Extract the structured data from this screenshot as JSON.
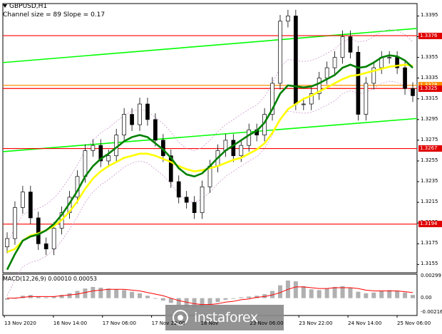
{
  "header": {
    "symbol": "GBPUSD,H1",
    "subtitle": "Channel size = 89 Slope = 0.17"
  },
  "macd": {
    "label": "MACD(12,26,9) 0.00010 0.00053",
    "ticks": [
      "0.00299",
      "0.00",
      "-0.00216"
    ]
  },
  "watermark": {
    "text": "instaforex"
  },
  "colors": {
    "candles": "#000000",
    "ma_fast": "#ffff00",
    "ma_slow": "#008000",
    "channel": "#00ff00",
    "levels": "#ff0000",
    "bands": "#cc99cc",
    "macd_hist": "#b0b0b0",
    "macd_signal": "#ff0000"
  },
  "chart_data": {
    "type": "line",
    "title": "GBPUSD,H1",
    "subtitle": "Channel size = 89 Slope = 0.17",
    "y_ticks": [
      "1.3395",
      "1.3375",
      "1.3355",
      "1.3335",
      "1.3315",
      "1.3295",
      "1.3275",
      "1.3255",
      "1.3235",
      "1.3215",
      "1.3195",
      "1.3175",
      "1.3155"
    ],
    "ylim": [
      1.3147,
      1.3407
    ],
    "x_ticks": [
      "13 Nov 2020",
      "16 Nov 14:00",
      "17 Nov 06:00",
      "17 Nov 22:00",
      "18 Nov",
      "23 Nov 06:00",
      "23 Nov 22:00",
      "24 Nov 14:00",
      "25 Nov 06:00"
    ],
    "levels": [
      {
        "label": "1.3376",
        "value": 1.3376,
        "color": "#ff0000"
      },
      {
        "label": "1.3328",
        "value": 1.3328,
        "color": "#ff8c00"
      },
      {
        "label": "1.3325",
        "value": 1.3325,
        "color": "#ff0000"
      },
      {
        "label": "1.3267",
        "value": 1.3267,
        "color": "#ff0000"
      },
      {
        "label": "1.3194",
        "value": 1.3194,
        "color": "#ff0000"
      }
    ],
    "channel_lines": [
      {
        "start": 1.335,
        "end": 1.3383
      },
      {
        "start": 1.3264,
        "end": 1.3296
      }
    ],
    "series": [
      {
        "name": "close",
        "values": [
          1.318,
          1.321,
          1.3225,
          1.32,
          1.3175,
          1.317,
          1.319,
          1.3205,
          1.322,
          1.324,
          1.3265,
          1.327,
          1.3255,
          1.326,
          1.328,
          1.33,
          1.329,
          1.331,
          1.3295,
          1.3275,
          1.326,
          1.3235,
          1.322,
          1.3215,
          1.3205,
          1.323,
          1.325,
          1.3265,
          1.3275,
          1.326,
          1.327,
          1.3285,
          1.328,
          1.33,
          1.333,
          1.339,
          1.3395,
          1.331,
          1.331,
          1.332,
          1.3335,
          1.3345,
          1.3355,
          1.3375,
          1.336,
          1.33,
          1.333,
          1.3345,
          1.3355,
          1.3355,
          1.3345,
          1.3325,
          1.3318
        ]
      },
      {
        "name": "ma_fast",
        "values": [
          1.3167,
          1.317,
          1.3178,
          1.3183,
          1.3185,
          1.3188,
          1.3192,
          1.3198,
          1.3206,
          1.3216,
          1.3228,
          1.3238,
          1.3245,
          1.325,
          1.3254,
          1.3258,
          1.326,
          1.3262,
          1.3262,
          1.326,
          1.3257,
          1.3254,
          1.325,
          1.3247,
          1.3245,
          1.3246,
          1.3248,
          1.325,
          1.3253,
          1.3256,
          1.3258,
          1.3262,
          1.3266,
          1.3272,
          1.3282,
          1.3295,
          1.3305,
          1.331,
          1.3315,
          1.3318,
          1.3322,
          1.3326,
          1.333,
          1.3334,
          1.3337,
          1.3338,
          1.334,
          1.3342,
          1.3344,
          1.3346,
          1.3347,
          1.3348,
          1.3347
        ]
      },
      {
        "name": "ma_slow",
        "values": [
          1.315,
          1.3165,
          1.3178,
          1.3182,
          1.3184,
          1.3188,
          1.3194,
          1.3203,
          1.3214,
          1.3226,
          1.324,
          1.325,
          1.3257,
          1.3262,
          1.3268,
          1.3274,
          1.3278,
          1.328,
          1.3278,
          1.3272,
          1.3266,
          1.3258,
          1.3248,
          1.3242,
          1.324,
          1.3243,
          1.325,
          1.3258,
          1.3265,
          1.327,
          1.3275,
          1.328,
          1.3284,
          1.3292,
          1.3305,
          1.332,
          1.3328,
          1.3327,
          1.3326,
          1.3327,
          1.333,
          1.3334,
          1.3338,
          1.3345,
          1.3348,
          1.3345,
          1.3346,
          1.335,
          1.3355,
          1.3357,
          1.3356,
          1.3352,
          1.3345
        ]
      }
    ],
    "macd_hist": [
      -0.0002,
      0.0,
      0.0003,
      0.0004,
      0.0002,
      0.0001,
      0.0002,
      0.0004,
      0.0006,
      0.0009,
      0.0012,
      0.0014,
      0.0013,
      0.0012,
      0.0011,
      0.001,
      0.0008,
      0.0006,
      0.0003,
      0.0,
      -0.0003,
      -0.0006,
      -0.0009,
      -0.0011,
      -0.0012,
      -0.0011,
      -0.0008,
      -0.0005,
      -0.0002,
      0.0,
      0.0001,
      0.0002,
      0.0003,
      0.0005,
      0.0009,
      0.0016,
      0.0022,
      0.0021,
      0.0015,
      0.0011,
      0.001,
      0.0012,
      0.0014,
      0.0015,
      0.0013,
      0.0008,
      0.0006,
      0.0007,
      0.0009,
      0.001,
      0.0009,
      0.0007,
      0.0004
    ],
    "macd_signal": [
      0.0,
      0.0,
      0.0001,
      0.0002,
      0.0002,
      0.0002,
      0.0002,
      0.0003,
      0.0004,
      0.0005,
      0.0007,
      0.0009,
      0.001,
      0.0011,
      0.0011,
      0.0011,
      0.001,
      0.0009,
      0.0007,
      0.0005,
      0.0003,
      0.0,
      -0.0003,
      -0.0005,
      -0.0007,
      -0.0008,
      -0.0008,
      -0.0007,
      -0.0005,
      -0.0004,
      -0.0002,
      -0.0001,
      0.0001,
      0.0002,
      0.0004,
      0.0007,
      0.0011,
      0.0014,
      0.0014,
      0.0013,
      0.0012,
      0.0012,
      0.0013,
      0.0013,
      0.0013,
      0.0012,
      0.001,
      0.0009,
      0.0009,
      0.0009,
      0.0009,
      0.0008,
      0.0007
    ]
  }
}
